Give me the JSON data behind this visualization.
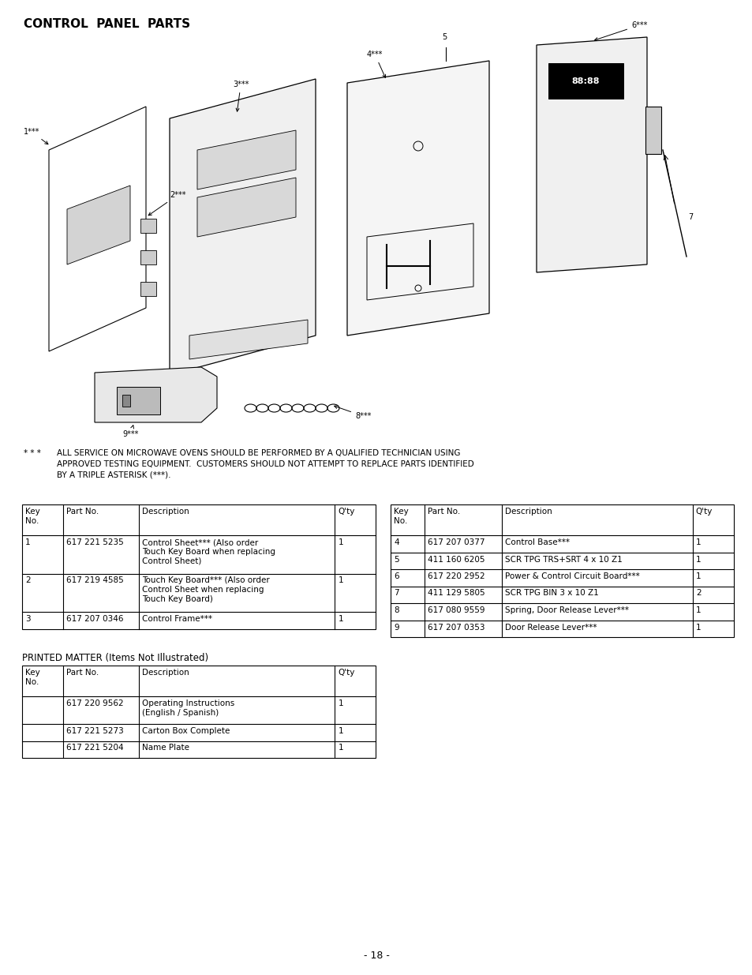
{
  "title": "CONTROL  PANEL  PARTS",
  "disclaimer_star": "* * *",
  "disclaimer_text": "ALL SERVICE ON MICROWAVE OVENS SHOULD BE PERFORMED BY A QUALIFIED TECHNICIAN USING\nAPPROVED TESTING EQUIPMENT.  CUSTOMERS SHOULD NOT ATTEMPT TO REPLACE PARTS IDENTIFIED\nBY A TRIPLE ASTERISK (***).",
  "table1_headers": [
    "Key\nNo.",
    "Part No.",
    "Description",
    "Q'ty"
  ],
  "table1_rows": [
    [
      "1",
      "617 221 5235",
      "Control Sheet*** (Also order\nTouch Key Board when replacing\nControl Sheet)",
      "1"
    ],
    [
      "2",
      "617 219 4585",
      "Touch Key Board*** (Also order\nControl Sheet when replacing\nTouch Key Board)",
      "1"
    ],
    [
      "3",
      "617 207 0346",
      "Control Frame***",
      "1"
    ]
  ],
  "table2_headers": [
    "Key\nNo.",
    "Part No.",
    "Description",
    "Q'ty"
  ],
  "table2_rows": [
    [
      "4",
      "617 207 0377",
      "Control Base***",
      "1"
    ],
    [
      "5",
      "411 160 6205",
      "SCR TPG TRS+SRT 4 x 10 Z1",
      "1"
    ],
    [
      "6",
      "617 220 2952",
      "Power & Control Circuit Board***",
      "1"
    ],
    [
      "7",
      "411 129 5805",
      "SCR TPG BIN 3 x 10 Z1",
      "2"
    ],
    [
      "8",
      "617 080 9559",
      "Spring, Door Release Lever***",
      "1"
    ],
    [
      "9",
      "617 207 0353",
      "Door Release Lever***",
      "1"
    ]
  ],
  "table3_title": "PRINTED MATTER (Items Not Illustrated)",
  "table3_headers": [
    "Key\nNo.",
    "Part No.",
    "Description",
    "Q'ty"
  ],
  "table3_rows": [
    [
      "",
      "617 220 9562",
      "Operating Instructions\n(English / Spanish)",
      "1"
    ],
    [
      "",
      "617 221 5273",
      "Carton Box Complete",
      "1"
    ],
    [
      "",
      "617 221 5204",
      "Name Plate",
      "1"
    ]
  ],
  "page_number": "- 18 -",
  "bg_color": "#ffffff",
  "text_color": "#000000"
}
